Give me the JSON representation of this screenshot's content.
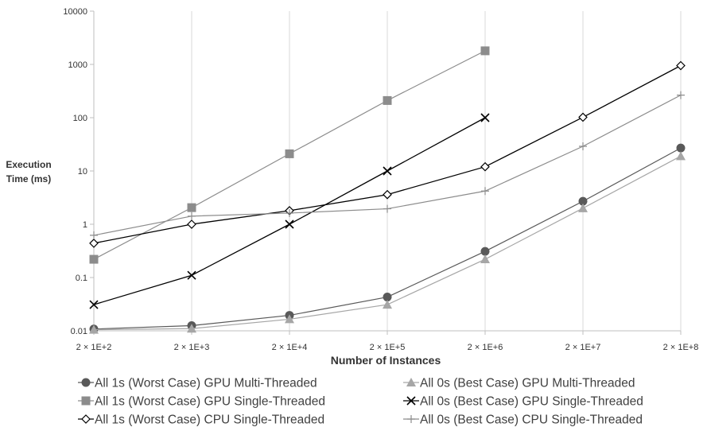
{
  "chart_data": {
    "type": "line",
    "title": "",
    "xlabel": "Number of Instances",
    "ylabel": [
      "Execution",
      "Time (ms)"
    ],
    "y_scale": "log",
    "ylim": [
      0.01,
      10000
    ],
    "grid": "vertical",
    "legend_position": "bottom",
    "x_tick_labels": [
      "2 × 1E+2",
      "2 × 1E+3",
      "2 × 1E+4",
      "2 × 1E+5",
      "2 × 1E+6",
      "2 × 1E+7",
      "2 × 1E+8"
    ],
    "y_tick_labels": [
      "10000",
      "1000",
      "100",
      "10",
      "1",
      "0.1",
      "0.01"
    ],
    "x": [
      200,
      2000,
      20000,
      200000,
      2000000,
      20000000,
      200000000
    ],
    "series": [
      {
        "name": "All 1s (Worst Case) GPU Multi-Threaded",
        "color": "#595959",
        "marker": "circle",
        "values": [
          0.0108,
          0.0125,
          0.0195,
          0.043,
          0.31,
          2.7,
          27
        ]
      },
      {
        "name": "All 0s (Best Case) GPU Multi-Threaded",
        "color": "#a6a6a6",
        "marker": "triangle",
        "values": [
          0.0105,
          0.011,
          0.0165,
          0.031,
          0.22,
          2.0,
          19
        ]
      },
      {
        "name": "All 1s (Worst Case) GPU Single-Threaded",
        "color": "#8c8c8c",
        "marker": "square",
        "values": [
          0.22,
          2.05,
          21,
          210,
          1800,
          null,
          null
        ]
      },
      {
        "name": "All 0s (Best Case) GPU Single-Threaded",
        "color": "#000000",
        "marker": "x",
        "values": [
          0.031,
          0.11,
          1.0,
          10,
          100,
          null,
          null
        ]
      },
      {
        "name": "All 1s (Worst Case) CPU Single-Threaded",
        "color": "#000000",
        "marker": "diamond",
        "values": [
          0.44,
          1.0,
          1.8,
          3.6,
          12,
          102,
          950
        ]
      },
      {
        "name": "All 0s (Best Case) CPU Single-Threaded",
        "color": "#8c8c8c",
        "marker": "plus",
        "values": [
          0.62,
          1.42,
          1.62,
          1.95,
          4.2,
          29,
          265
        ]
      }
    ]
  }
}
